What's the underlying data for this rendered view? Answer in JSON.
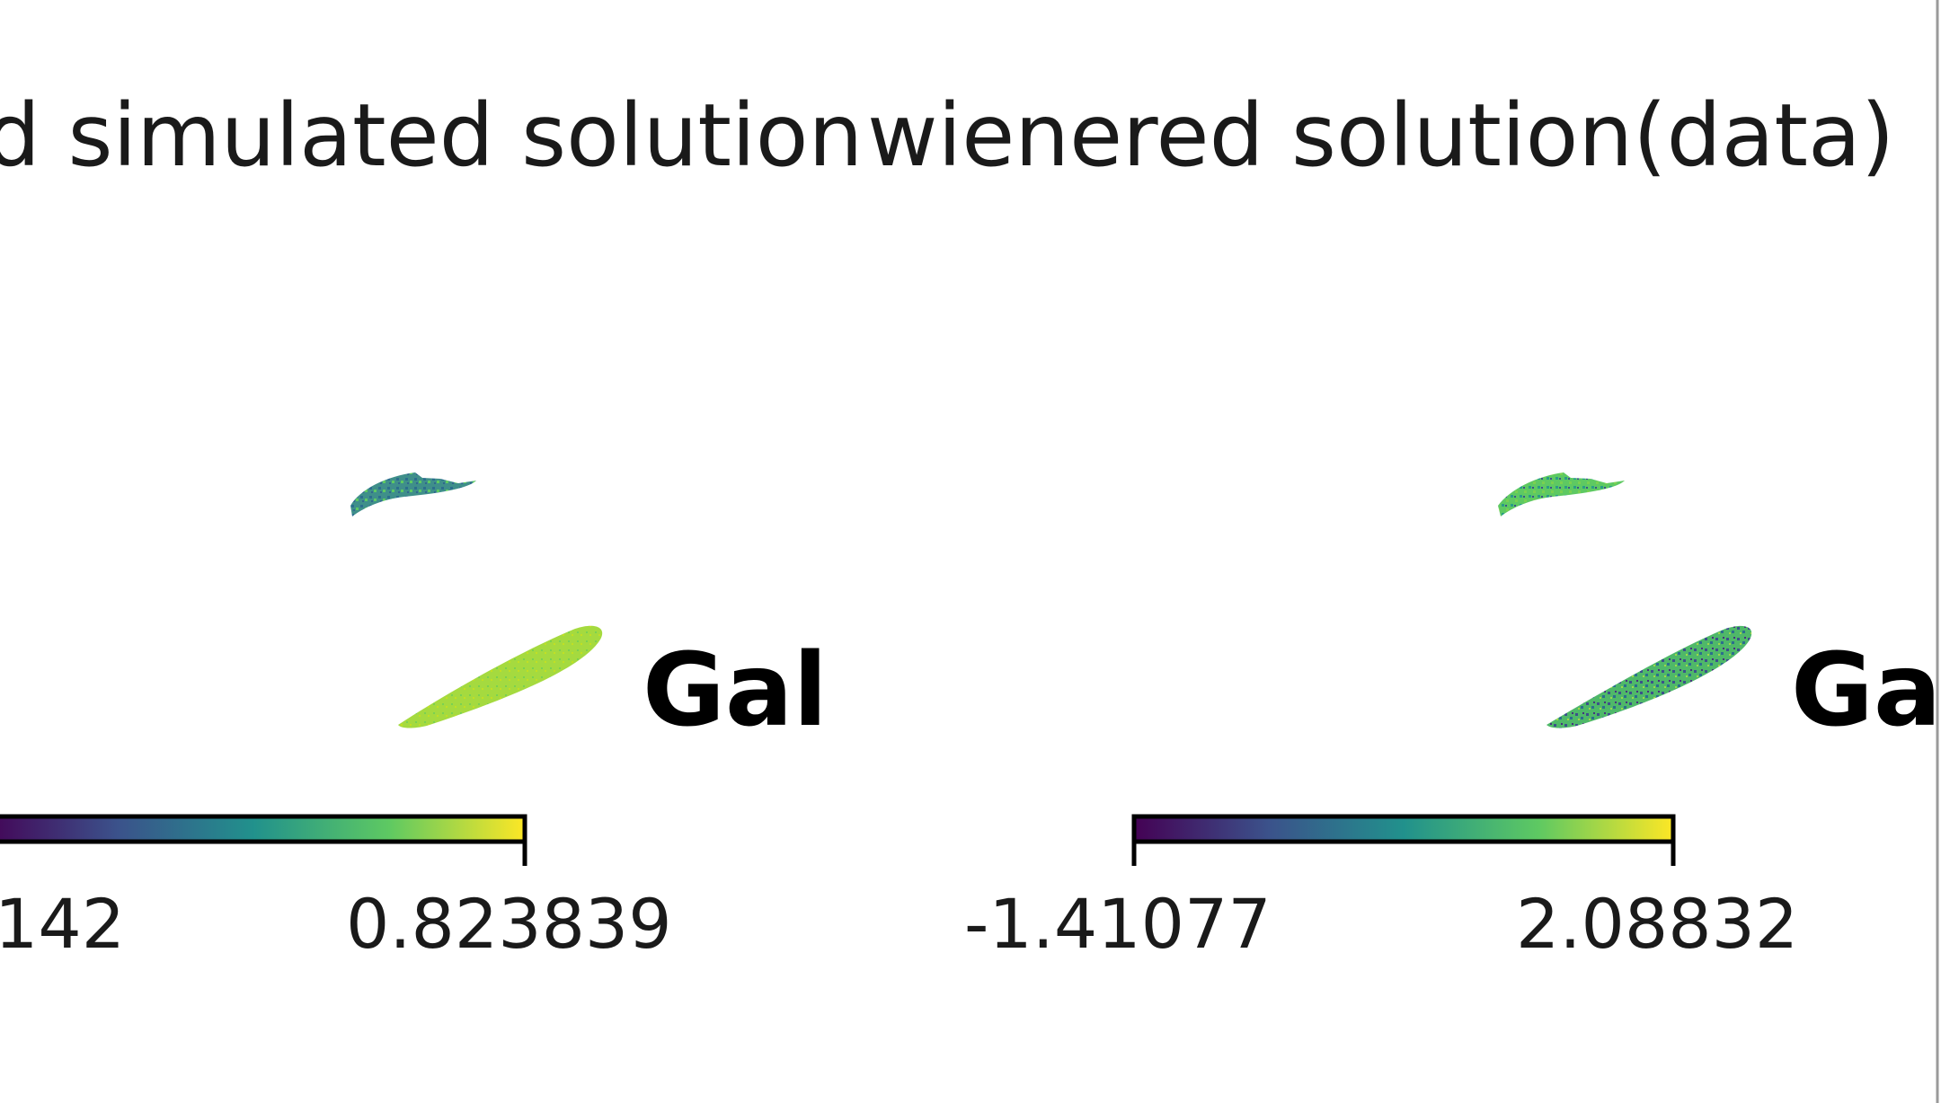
{
  "chart_data": [
    {
      "type": "heatmap",
      "title": "d simulated solution",
      "colormap": "viridis",
      "colorbar": {
        "orientation": "horizontal",
        "min_label": "142",
        "max_label": "0.823839"
      },
      "overlay_label": "Gal",
      "clouds": [
        {
          "name": "small-cloud",
          "color": "#3b8a8c"
        },
        {
          "name": "large-cloud",
          "color": "#9fd84a"
        }
      ]
    },
    {
      "type": "heatmap",
      "title": "wienered solution(data)",
      "colormap": "viridis",
      "colorbar": {
        "orientation": "horizontal",
        "min_label": "-1.41077",
        "max_label": "2.08832"
      },
      "overlay_label": "Ga",
      "clouds": [
        {
          "name": "small-cloud",
          "color": "#52b56f"
        },
        {
          "name": "large-cloud",
          "color": "#4fb869"
        }
      ]
    }
  ],
  "colors": {
    "viridis": [
      "#440154",
      "#3b528b",
      "#21918c",
      "#5ec962",
      "#fde725"
    ]
  }
}
